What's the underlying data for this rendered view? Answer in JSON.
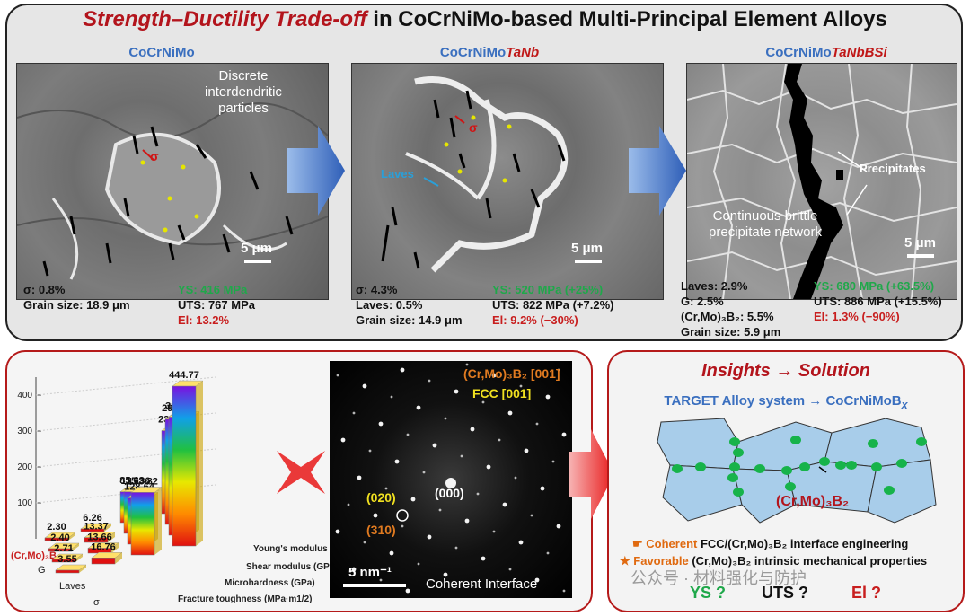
{
  "title": {
    "highlight": "Strength–Ductility Trade-off",
    "rest": " in CoCrNiMo-based Multi-Principal Element Alloys"
  },
  "alloys": [
    {
      "name": "CoCrNiMo",
      "suffix": "",
      "annotations": [
        "Discrete interdendritic particles",
        "σ"
      ],
      "scale": "5 μm",
      "stats_left": [
        "σ: 0.8%",
        "Grain size: 18.9 μm"
      ],
      "ys": "YS: 416 MPa",
      "uts": "UTS: 767 MPa",
      "el": "El: 13.2%"
    },
    {
      "name": "CoCrNiMo",
      "suffix": "TaNb",
      "annotations": [
        "σ",
        "Laves"
      ],
      "scale": "5 μm",
      "stats_left": [
        "σ: 4.3%",
        "Laves: 0.5%",
        "Grain size: 14.9 μm"
      ],
      "ys": "YS: 520 MPa (+25%)",
      "uts": "UTS: 822 MPa (+7.2%)",
      "el": "El: 9.2% (−30%)"
    },
    {
      "name": "CoCrNiMo",
      "suffix": "TaNbBSi",
      "annotations": [
        "Precipitates",
        "Continuous brittle precipitate network"
      ],
      "scale": "5 μm",
      "stats_left": [
        "Laves: 2.9%",
        "G: 2.5%",
        "(Cr,Mo)₃B₂: 5.5%",
        "Grain size: 5.9 μm"
      ],
      "ys": "YS: 680 MPa (+63.5%)",
      "uts": "UTS: 886 MPa (+15.5%)",
      "el": "El: 1.3% (−90%)"
    }
  ],
  "chart_data": {
    "type": "bar",
    "categories": [
      "(Cr,Mo)₃B₂",
      "G",
      "Laves",
      "σ"
    ],
    "series": [
      {
        "name": "Young's modulus",
        "values": [
          444.77,
          328.78,
          292.68,
          230.86
        ]
      },
      {
        "name": "Shear modulus (GPa)",
        "values": [
          173.82,
          128.64,
          115.36,
          85.63
        ]
      },
      {
        "name": "Microhardness (GPa)",
        "values": [
          16.76,
          13.66,
          13.37,
          6.26
        ]
      },
      {
        "name": "Fracture toughness (MPa·m1/2)",
        "values": [
          3.55,
          2.71,
          2.4,
          2.3
        ]
      }
    ],
    "yticks": [
      100,
      200,
      300,
      400
    ],
    "ylim": [
      0,
      450
    ]
  },
  "saed": {
    "zone1": "(Cr,Mo)₃B₂ [001]",
    "zone2": "FCC [001]",
    "spot_000": "(000)",
    "spot_020": "(020)",
    "spot_310": "(310)",
    "scale": "5 nm⁻¹",
    "caption": "Coherent Interface"
  },
  "insights": {
    "title": "Insights → Solution",
    "target": "TARGET Alloy system → CoCrNiMoB",
    "target_sub": "x",
    "phase_label": "(Cr,Mo)₃B₂",
    "bullet1_key": "Coherent",
    "bullet1_rest": " FCC/(Cr,Mo)₃B₂ interface engineering",
    "bullet2_key": "Favorable",
    "bullet2_rest": " (Cr,Mo)₃B₂ intrinsic mechanical properties",
    "ys": "YS ?",
    "uts": "UTS ?",
    "el": "El ?",
    "watermark": "公众号 · 材料强化与防护"
  },
  "colors": {
    "accent_red": "#b3141c",
    "accent_blue": "#3a6fbf",
    "arrow_blue": "#2f5fb8",
    "ys_green": "#1fa84a",
    "grain_fill": "#a8cdea",
    "precip_green": "#17b34a"
  }
}
